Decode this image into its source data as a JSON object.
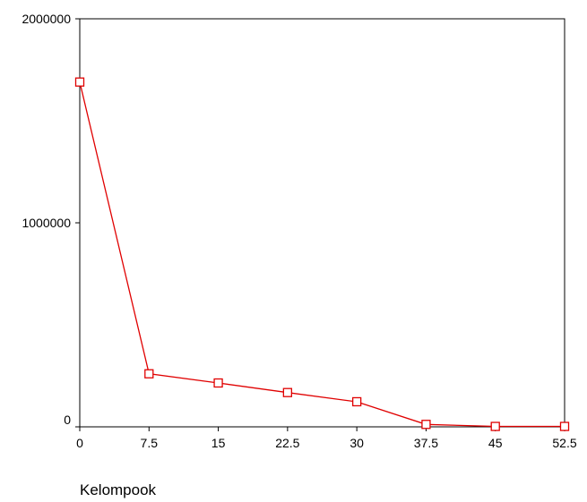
{
  "chart_data": {
    "type": "line",
    "title": "",
    "xlabel": "Kelompook",
    "ylabel": "",
    "x": [
      0,
      7.5,
      15,
      22.5,
      30,
      37.5,
      45,
      52.5
    ],
    "x_tick_labels": [
      "0",
      "7.5",
      "15",
      "22.5",
      "30",
      "37.5",
      "45",
      "52.5"
    ],
    "y_tick_values": [
      0,
      1000000,
      2000000
    ],
    "y_tick_labels": [
      "0",
      "1000000",
      "2000000"
    ],
    "xlim": [
      0,
      52.5
    ],
    "ylim": [
      0,
      2000000
    ],
    "grid": false,
    "legend": "none",
    "series": [
      {
        "values": [
          1690000,
          260000,
          215000,
          168000,
          123000,
          12000,
          2000,
          2000
        ],
        "color": "#e00000",
        "marker": "square"
      }
    ]
  }
}
